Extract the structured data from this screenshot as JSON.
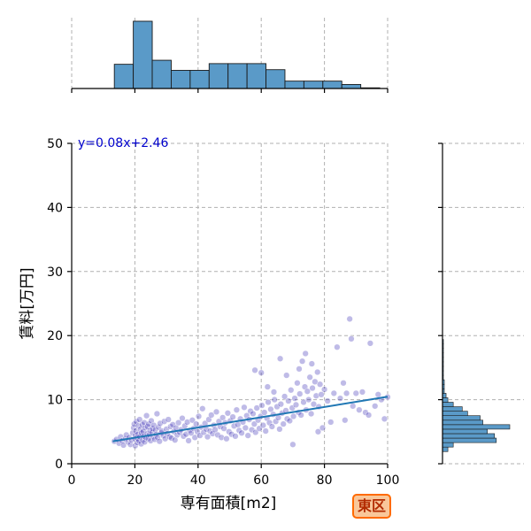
{
  "chart_data": {
    "type": "scatter",
    "xlabel": "専有面積[m2]",
    "ylabel": "賃料[万円]",
    "xlim": [
      0,
      100
    ],
    "ylim": [
      0,
      50
    ],
    "xticks": [
      0,
      20,
      40,
      60,
      80,
      100
    ],
    "yticks": [
      0,
      10,
      20,
      30,
      40,
      50
    ],
    "grid": true,
    "regression": {
      "label": "y=0.08x+2.46",
      "slope": 0.08,
      "intercept": 2.46,
      "x_range": [
        13,
        100
      ]
    },
    "badge": "東区",
    "colors": {
      "points": "#2a1fb0",
      "line": "#1f77b4",
      "hist": "#5a9ac8",
      "badge_border": "#ff6a00",
      "badge_fill": "#f9c79a",
      "badge_text": "#b22a00",
      "equation": "#0000cc"
    },
    "x_histogram": {
      "bin_edges": [
        13.5,
        19.5,
        25.5,
        31.5,
        37.5,
        43.5,
        49.5,
        55.5,
        61.5,
        67.5,
        73.5,
        79.5,
        85.5,
        91.5,
        97.5
      ],
      "counts": [
        36,
        100,
        42,
        27,
        27,
        37,
        37,
        37,
        28,
        11,
        11,
        11,
        6,
        1
      ]
    },
    "y_histogram": {
      "bin_edges": [
        1.9,
        2.6,
        3.3,
        4.0,
        4.7,
        5.4,
        6.1,
        6.8,
        7.5,
        8.2,
        8.9,
        9.6,
        10.3,
        11.0,
        11.7,
        12.4,
        13.1,
        13.8,
        14.5,
        15.2,
        15.9,
        16.6,
        17.3,
        18.0,
        18.7,
        19.4
      ],
      "counts": [
        6,
        12,
        60,
        58,
        50,
        75,
        45,
        42,
        28,
        22,
        12,
        6,
        4,
        2,
        2,
        2,
        1,
        1,
        1,
        1,
        1,
        1,
        1,
        1,
        1
      ]
    },
    "points": [
      [
        13.5,
        3.5
      ],
      [
        14.2,
        3.8
      ],
      [
        15,
        3.2
      ],
      [
        15.5,
        4.2
      ],
      [
        16,
        3.6
      ],
      [
        16.4,
        2.9
      ],
      [
        17,
        3.9
      ],
      [
        17.3,
        4.5
      ],
      [
        17.8,
        3.4
      ],
      [
        18.2,
        4.1
      ],
      [
        18.6,
        3.0
      ],
      [
        19,
        3.7
      ],
      [
        19.3,
        4.8
      ],
      [
        19.6,
        5.6
      ],
      [
        19.8,
        6.2
      ],
      [
        20,
        3.9
      ],
      [
        20.1,
        2.8
      ],
      [
        20.2,
        4.4
      ],
      [
        20.3,
        5.1
      ],
      [
        20.5,
        6.6
      ],
      [
        20.6,
        4.0
      ],
      [
        20.8,
        3.3
      ],
      [
        21,
        4.6
      ],
      [
        21.1,
        5.9
      ],
      [
        21.3,
        3.6
      ],
      [
        21.5,
        6.9
      ],
      [
        21.6,
        4.2
      ],
      [
        21.8,
        5.4
      ],
      [
        22,
        3.1
      ],
      [
        22.1,
        4.8
      ],
      [
        22.3,
        6.1
      ],
      [
        22.5,
        3.7
      ],
      [
        22.6,
        5.0
      ],
      [
        22.8,
        4.3
      ],
      [
        23,
        6.4
      ],
      [
        23.1,
        3.4
      ],
      [
        23.3,
        5.6
      ],
      [
        23.5,
        4.1
      ],
      [
        23.7,
        7.5
      ],
      [
        23.9,
        4.7
      ],
      [
        24,
        5.8
      ],
      [
        24.2,
        3.9
      ],
      [
        24.4,
        6.2
      ],
      [
        24.6,
        4.5
      ],
      [
        24.8,
        5.2
      ],
      [
        25,
        3.6
      ],
      [
        25.2,
        6.7
      ],
      [
        25.4,
        4.9
      ],
      [
        25.6,
        5.5
      ],
      [
        25.8,
        4.2
      ],
      [
        26,
        6.0
      ],
      [
        26.3,
        3.8
      ],
      [
        26.5,
        5.3
      ],
      [
        26.8,
        4.6
      ],
      [
        27,
        7.8
      ],
      [
        27.2,
        4.1
      ],
      [
        27.5,
        5.7
      ],
      [
        27.8,
        3.5
      ],
      [
        28,
        6.3
      ],
      [
        28.3,
        4.8
      ],
      [
        28.6,
        5.1
      ],
      [
        29,
        4.4
      ],
      [
        29.3,
        6.6
      ],
      [
        29.6,
        3.9
      ],
      [
        30,
        5.4
      ],
      [
        30.3,
        4.7
      ],
      [
        30.6,
        6.9
      ],
      [
        31,
        4.2
      ],
      [
        31.3,
        5.8
      ],
      [
        31.6,
        4.0
      ],
      [
        32,
        6.1
      ],
      [
        32.3,
        5.0
      ],
      [
        32.7,
        3.7
      ],
      [
        33,
        5.6
      ],
      [
        33.4,
        4.5
      ],
      [
        33.8,
        6.4
      ],
      [
        34.2,
        4.9
      ],
      [
        34.6,
        5.3
      ],
      [
        35,
        7.1
      ],
      [
        35.4,
        4.3
      ],
      [
        35.8,
        5.9
      ],
      [
        36.2,
        4.6
      ],
      [
        36.6,
        6.5
      ],
      [
        37,
        3.6
      ],
      [
        37.4,
        5.2
      ],
      [
        37.8,
        4.8
      ],
      [
        38.2,
        6.8
      ],
      [
        38.6,
        5.5
      ],
      [
        39,
        4.1
      ],
      [
        39.4,
        6.2
      ],
      [
        39.8,
        5.0
      ],
      [
        40.2,
        7.4
      ],
      [
        40.6,
        4.4
      ],
      [
        41,
        5.7
      ],
      [
        41.4,
        8.6
      ],
      [
        41.8,
        4.9
      ],
      [
        42.2,
        6.3
      ],
      [
        42.6,
        5.4
      ],
      [
        43,
        4.2
      ],
      [
        43.4,
        6.9
      ],
      [
        43.8,
        5.1
      ],
      [
        44.2,
        7.6
      ],
      [
        44.6,
        4.7
      ],
      [
        45,
        6.0
      ],
      [
        45.4,
        5.3
      ],
      [
        45.8,
        8.1
      ],
      [
        46.2,
        4.5
      ],
      [
        46.6,
        6.6
      ],
      [
        47,
        5.8
      ],
      [
        47.4,
        4.1
      ],
      [
        47.8,
        7.2
      ],
      [
        48.2,
        5.5
      ],
      [
        48.6,
        6.4
      ],
      [
        49,
        3.9
      ],
      [
        49.4,
        7.9
      ],
      [
        49.8,
        5.0
      ],
      [
        50.2,
        6.7
      ],
      [
        50.6,
        4.6
      ],
      [
        51,
        7.3
      ],
      [
        51.4,
        5.9
      ],
      [
        51.8,
        4.3
      ],
      [
        52.2,
        8.4
      ],
      [
        52.6,
        6.1
      ],
      [
        53,
        5.2
      ],
      [
        53.4,
        7.0
      ],
      [
        53.8,
        4.8
      ],
      [
        54.2,
        6.5
      ],
      [
        54.6,
        8.8
      ],
      [
        55,
        5.6
      ],
      [
        55.4,
        7.5
      ],
      [
        55.8,
        4.4
      ],
      [
        56.2,
        6.9
      ],
      [
        56.6,
        8.2
      ],
      [
        57,
        5.3
      ],
      [
        57.4,
        7.8
      ],
      [
        57.8,
        6.2
      ],
      [
        58,
        14.6
      ],
      [
        58.2,
        4.9
      ],
      [
        58.6,
        8.7
      ],
      [
        59,
        6.8
      ],
      [
        59.4,
        5.5
      ],
      [
        59.8,
        7.4
      ],
      [
        60,
        14.2
      ],
      [
        60.2,
        9.1
      ],
      [
        60.6,
        6.0
      ],
      [
        61,
        8.0
      ],
      [
        61.4,
        5.1
      ],
      [
        61.8,
        7.1
      ],
      [
        62,
        12.0
      ],
      [
        62.2,
        9.6
      ],
      [
        62.6,
        6.4
      ],
      [
        63,
        8.5
      ],
      [
        63.4,
        5.8
      ],
      [
        63.8,
        7.7
      ],
      [
        64,
        11.2
      ],
      [
        64.2,
        10.0
      ],
      [
        64.6,
        6.6
      ],
      [
        65,
        8.9
      ],
      [
        65.4,
        7.2
      ],
      [
        65.8,
        5.4
      ],
      [
        66,
        16.4
      ],
      [
        66.2,
        9.3
      ],
      [
        66.6,
        7.9
      ],
      [
        67,
        6.2
      ],
      [
        67.4,
        10.5
      ],
      [
        67.8,
        8.3
      ],
      [
        68,
        13.8
      ],
      [
        68.2,
        7.0
      ],
      [
        68.6,
        9.8
      ],
      [
        69,
        6.7
      ],
      [
        69.4,
        11.5
      ],
      [
        69.8,
        8.7
      ],
      [
        70,
        3.0
      ],
      [
        70.2,
        7.4
      ],
      [
        70.6,
        10.2
      ],
      [
        71,
        9.2
      ],
      [
        71.4,
        12.6
      ],
      [
        71.8,
        8.0
      ],
      [
        72,
        14.8
      ],
      [
        72.2,
        10.9
      ],
      [
        72.6,
        7.6
      ],
      [
        73,
        16.0
      ],
      [
        73.4,
        9.6
      ],
      [
        73.8,
        12.0
      ],
      [
        74,
        17.2
      ],
      [
        74.2,
        8.4
      ],
      [
        74.6,
        11.3
      ],
      [
        75,
        10.0
      ],
      [
        75.4,
        13.5
      ],
      [
        75.8,
        7.8
      ],
      [
        76,
        15.6
      ],
      [
        76.2,
        11.8
      ],
      [
        76.6,
        9.3
      ],
      [
        77,
        12.8
      ],
      [
        77.4,
        10.6
      ],
      [
        77.8,
        14.3
      ],
      [
        78,
        5.0
      ],
      [
        78.2,
        8.9
      ],
      [
        78.6,
        12.4
      ],
      [
        79,
        10.8
      ],
      [
        79.4,
        5.6
      ],
      [
        80,
        11.6
      ],
      [
        81,
        9.8
      ],
      [
        82,
        6.5
      ],
      [
        83,
        11.0
      ],
      [
        84,
        18.2
      ],
      [
        85,
        10.2
      ],
      [
        86,
        12.6
      ],
      [
        86.5,
        6.8
      ],
      [
        87,
        11.0
      ],
      [
        88,
        22.6
      ],
      [
        88.5,
        19.5
      ],
      [
        89,
        9.0
      ],
      [
        90,
        11.0
      ],
      [
        91,
        8.4
      ],
      [
        92,
        11.2
      ],
      [
        93,
        8.0
      ],
      [
        94,
        7.6
      ],
      [
        94.5,
        18.8
      ],
      [
        96,
        9.0
      ],
      [
        97,
        10.8
      ],
      [
        98,
        10.0
      ],
      [
        99,
        7.0
      ],
      [
        100,
        10.4
      ]
    ]
  }
}
